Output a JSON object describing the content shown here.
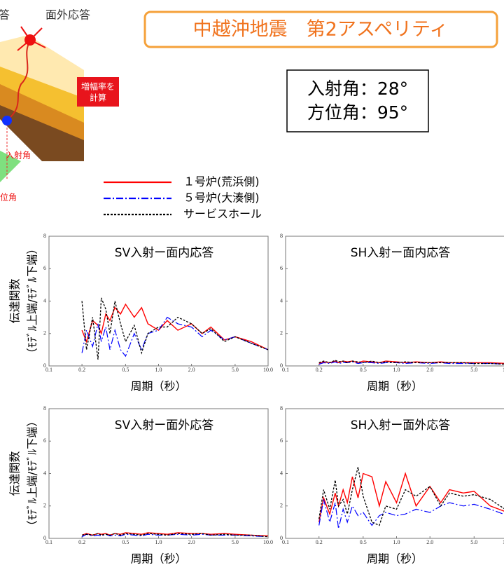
{
  "header": {
    "title": "中越沖地震　第2アスペリティ",
    "angles": [
      "入射角：28°",
      "方位角：95°"
    ]
  },
  "diagram": {
    "labels": [
      "答",
      "面外応答",
      "増幅率を",
      "計算",
      "入射角",
      "位角"
    ]
  },
  "chart_data": [
    {
      "type": "line",
      "title": "SV入射ー面内応答",
      "x_label": "周期（秒）",
      "y_label": [
        "伝達関数",
        "（ﾓﾃﾞﾙ上端/ﾓﾃﾞﾙ下端）"
      ],
      "log_x": true,
      "grid": false,
      "xlim": [
        0.1,
        10
      ],
      "ylim": [
        0,
        8
      ],
      "xticks": [
        0.1,
        0.2,
        0.5,
        {
          "value": 1,
          "label": "1.0"
        },
        {
          "value": 2,
          "label": "2.0"
        },
        {
          "value": 5,
          "label": "5.0"
        },
        {
          "value": 10,
          "label": "10.0"
        }
      ],
      "yticks": [
        0,
        2,
        4,
        6,
        8
      ],
      "x": [
        0.2,
        0.22,
        0.25,
        0.28,
        0.3,
        0.33,
        0.36,
        0.4,
        0.45,
        0.5,
        0.6,
        0.7,
        0.8,
        1.0,
        1.2,
        1.5,
        2.0,
        2.5,
        3.0,
        4.0,
        5.0,
        7.0,
        10.0
      ],
      "series": [
        {
          "name": "１号炉(荒浜側)",
          "color": "#ff0000",
          "dash": "solid",
          "values": [
            2.2,
            1.5,
            2.8,
            2.5,
            2.0,
            3.2,
            2.8,
            3.6,
            3.2,
            3.8,
            3.0,
            3.6,
            2.6,
            2.2,
            2.8,
            2.2,
            2.6,
            2.0,
            2.4,
            1.6,
            1.8,
            1.5,
            1.0
          ]
        },
        {
          "name": "５号炉(大湊側)",
          "color": "#0000ff",
          "dash": "dashdot",
          "values": [
            0.8,
            2.2,
            1.2,
            2.6,
            1.5,
            2.4,
            1.0,
            2.2,
            1.0,
            0.6,
            2.0,
            1.0,
            2.0,
            2.2,
            3.0,
            2.6,
            2.4,
            1.8,
            2.2,
            1.6,
            1.8,
            1.4,
            1.0
          ]
        },
        {
          "name": "サービスホール",
          "color": "#000000",
          "dash": "dotted",
          "values": [
            4.0,
            1.0,
            3.0,
            0.4,
            4.2,
            3.5,
            2.0,
            4.0,
            2.6,
            1.5,
            2.5,
            0.8,
            2.0,
            2.4,
            2.4,
            3.0,
            2.6,
            2.0,
            2.3,
            1.5,
            1.8,
            1.4,
            1.0
          ]
        }
      ]
    },
    {
      "type": "line",
      "title": "SH入射ー面内応答",
      "x_label": "周期（秒）",
      "log_x": true,
      "grid": false,
      "xlim": [
        0.1,
        10
      ],
      "ylim": [
        0,
        8
      ],
      "xticks": [
        0.1,
        0.2,
        0.5,
        {
          "value": 1,
          "label": "1.0"
        },
        {
          "value": 2,
          "label": "2.0"
        },
        {
          "value": 5,
          "label": "5.0"
        },
        {
          "value": 10,
          "label": "10.0"
        }
      ],
      "yticks": [
        0,
        2,
        4,
        6,
        8
      ],
      "x": [
        0.2,
        0.22,
        0.25,
        0.28,
        0.3,
        0.33,
        0.36,
        0.4,
        0.45,
        0.5,
        0.6,
        0.7,
        0.8,
        1.0,
        1.2,
        1.5,
        2.0,
        2.5,
        3.0,
        4.0,
        5.0,
        7.0,
        10.0
      ],
      "series": [
        {
          "color": "#ff0000",
          "dash": "solid",
          "values": [
            0.15,
            0.25,
            0.2,
            0.3,
            0.2,
            0.3,
            0.25,
            0.3,
            0.2,
            0.3,
            0.25,
            0.2,
            0.3,
            0.25,
            0.2,
            0.25,
            0.2,
            0.25,
            0.2,
            0.2,
            0.2,
            0.2,
            0.15
          ]
        },
        {
          "color": "#0000ff",
          "dash": "dashdot",
          "values": [
            0.1,
            0.2,
            0.15,
            0.25,
            0.15,
            0.2,
            0.2,
            0.25,
            0.15,
            0.2,
            0.2,
            0.15,
            0.2,
            0.2,
            0.15,
            0.2,
            0.15,
            0.2,
            0.15,
            0.15,
            0.15,
            0.15,
            0.1
          ]
        },
        {
          "color": "#000000",
          "dash": "dotted",
          "values": [
            0.2,
            0.3,
            0.2,
            0.35,
            0.25,
            0.3,
            0.2,
            0.3,
            0.25,
            0.2,
            0.3,
            0.2,
            0.25,
            0.2,
            0.25,
            0.2,
            0.2,
            0.2,
            0.2,
            0.2,
            0.15,
            0.15,
            0.1
          ]
        }
      ]
    },
    {
      "type": "line",
      "title": "SV入射ー面外応答",
      "x_label": "周期（秒）",
      "y_label": [
        "伝達関数",
        "（ﾓﾃﾞﾙ上端/ﾓﾃﾞﾙ下端）"
      ],
      "log_x": true,
      "grid": false,
      "xlim": [
        0.1,
        10
      ],
      "ylim": [
        0,
        8
      ],
      "xticks": [
        0.1,
        0.2,
        0.5,
        {
          "value": 1,
          "label": "1.0"
        },
        {
          "value": 2,
          "label": "2.0"
        },
        {
          "value": 5,
          "label": "5.0"
        },
        {
          "value": 10,
          "label": "10.0"
        }
      ],
      "yticks": [
        0,
        2,
        4,
        6,
        8
      ],
      "x": [
        0.2,
        0.22,
        0.25,
        0.28,
        0.3,
        0.33,
        0.36,
        0.4,
        0.45,
        0.5,
        0.6,
        0.7,
        0.8,
        1.0,
        1.2,
        1.5,
        2.0,
        2.5,
        3.0,
        4.0,
        5.0,
        7.0,
        10.0
      ],
      "series": [
        {
          "color": "#ff0000",
          "dash": "solid",
          "values": [
            0.2,
            0.3,
            0.2,
            0.3,
            0.25,
            0.3,
            0.2,
            0.3,
            0.25,
            0.35,
            0.3,
            0.25,
            0.35,
            0.3,
            0.25,
            0.35,
            0.3,
            0.3,
            0.25,
            0.3,
            0.25,
            0.2,
            0.15
          ]
        },
        {
          "color": "#0000ff",
          "dash": "dashdot",
          "values": [
            0.1,
            0.25,
            0.15,
            0.2,
            0.15,
            0.25,
            0.15,
            0.2,
            0.15,
            0.25,
            0.2,
            0.15,
            0.25,
            0.2,
            0.2,
            0.25,
            0.2,
            0.25,
            0.2,
            0.2,
            0.2,
            0.15,
            0.1
          ]
        },
        {
          "color": "#000000",
          "dash": "dotted",
          "values": [
            0.2,
            0.25,
            0.2,
            0.3,
            0.2,
            0.25,
            0.2,
            0.3,
            0.2,
            0.3,
            0.25,
            0.2,
            0.3,
            0.25,
            0.2,
            0.3,
            0.25,
            0.3,
            0.2,
            0.25,
            0.2,
            0.2,
            0.1
          ]
        }
      ]
    },
    {
      "type": "line",
      "title": "SH入射ー面外応答",
      "x_label": "周期（秒）",
      "log_x": true,
      "grid": false,
      "xlim": [
        0.1,
        10
      ],
      "ylim": [
        0,
        8
      ],
      "xticks": [
        0.1,
        0.2,
        0.5,
        {
          "value": 1,
          "label": "1.0"
        },
        {
          "value": 2,
          "label": "2.0"
        },
        {
          "value": 5,
          "label": "5.0"
        },
        {
          "value": 10,
          "label": "10.0"
        }
      ],
      "yticks": [
        0,
        2,
        4,
        6,
        8
      ],
      "x": [
        0.2,
        0.22,
        0.25,
        0.28,
        0.3,
        0.33,
        0.36,
        0.4,
        0.45,
        0.5,
        0.6,
        0.7,
        0.8,
        1.0,
        1.2,
        1.5,
        2.0,
        2.5,
        3.0,
        4.0,
        5.0,
        7.0,
        10.0
      ],
      "series": [
        {
          "color": "#ff0000",
          "dash": "solid",
          "values": [
            1.0,
            2.5,
            1.5,
            2.8,
            2.0,
            3.0,
            2.2,
            3.8,
            2.5,
            4.0,
            3.8,
            2.0,
            3.5,
            2.2,
            4.0,
            2.0,
            3.2,
            2.2,
            3.0,
            2.8,
            2.9,
            2.0,
            1.6
          ]
        },
        {
          "color": "#0000ff",
          "dash": "dashdot",
          "values": [
            0.8,
            2.4,
            1.0,
            2.2,
            0.6,
            1.8,
            1.0,
            2.0,
            1.4,
            1.6,
            0.8,
            1.4,
            1.6,
            1.4,
            1.5,
            1.8,
            1.6,
            2.0,
            2.2,
            2.0,
            2.1,
            1.8,
            1.4
          ]
        },
        {
          "color": "#000000",
          "dash": "dotted",
          "values": [
            1.2,
            3.0,
            1.8,
            3.6,
            2.0,
            2.4,
            1.5,
            3.0,
            4.4,
            2.6,
            1.0,
            0.8,
            2.0,
            1.8,
            3.0,
            2.6,
            3.2,
            2.0,
            2.8,
            2.6,
            2.7,
            2.4,
            1.7
          ]
        }
      ]
    }
  ]
}
